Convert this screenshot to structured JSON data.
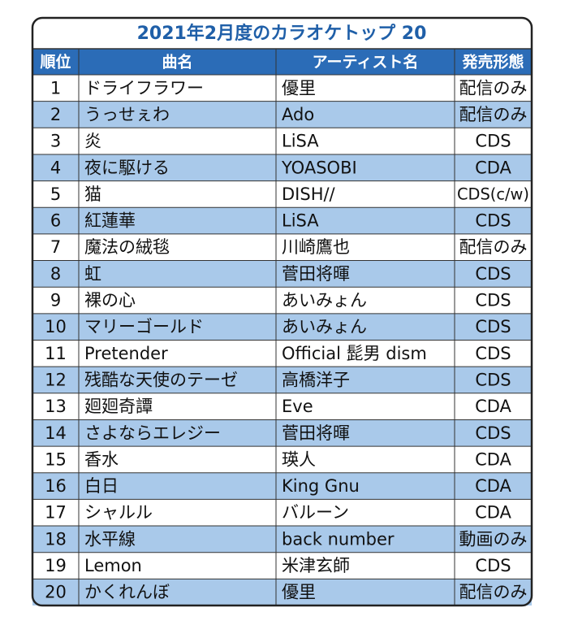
{
  "header": {
    "title": "2021年2月度のカラオケトップ 20"
  },
  "table": {
    "columns": [
      "順位",
      "曲名",
      "アーティスト名",
      "発売形態"
    ],
    "rows": [
      [
        "1",
        "ドライフラワー",
        "優里",
        "配信のみ"
      ],
      [
        "2",
        "うっせぇわ",
        "Ado",
        "配信のみ"
      ],
      [
        "3",
        "炎",
        "LiSA",
        "CDS"
      ],
      [
        "4",
        "夜に駆ける",
        "YOASOBI",
        "CDA"
      ],
      [
        "5",
        "猫",
        "DISH//",
        "CDS(c/w)"
      ],
      [
        "6",
        "紅蓮華",
        "LiSA",
        "CDS"
      ],
      [
        "7",
        "魔法の絨毯",
        "川崎鷹也",
        "配信のみ"
      ],
      [
        "8",
        "虹",
        "菅田将暉",
        "CDS"
      ],
      [
        "9",
        "裸の心",
        "あいみょん",
        "CDS"
      ],
      [
        "10",
        "マリーゴールド",
        "あいみょん",
        "CDS"
      ],
      [
        "11",
        "Pretender",
        "Official 髭男 dism",
        "CDS"
      ],
      [
        "12",
        "残酷な天使のテーゼ",
        "高橋洋子",
        "CDS"
      ],
      [
        "13",
        "廻廻奇譚",
        "Eve",
        "CDA"
      ],
      [
        "14",
        "さよならエレジー",
        "菅田将暉",
        "CDS"
      ],
      [
        "15",
        "香水",
        "瑛人",
        "CDA"
      ],
      [
        "16",
        "白日",
        "King Gnu",
        "CDA"
      ],
      [
        "17",
        "シャルル",
        "バルーン",
        "CDA"
      ],
      [
        "18",
        "水平線",
        "back number",
        "動画のみ"
      ],
      [
        "19",
        "Lemon",
        "米津玄師",
        "CDS"
      ],
      [
        "20",
        "かくれんぼ",
        "優里",
        "配信のみ"
      ]
    ]
  }
}
